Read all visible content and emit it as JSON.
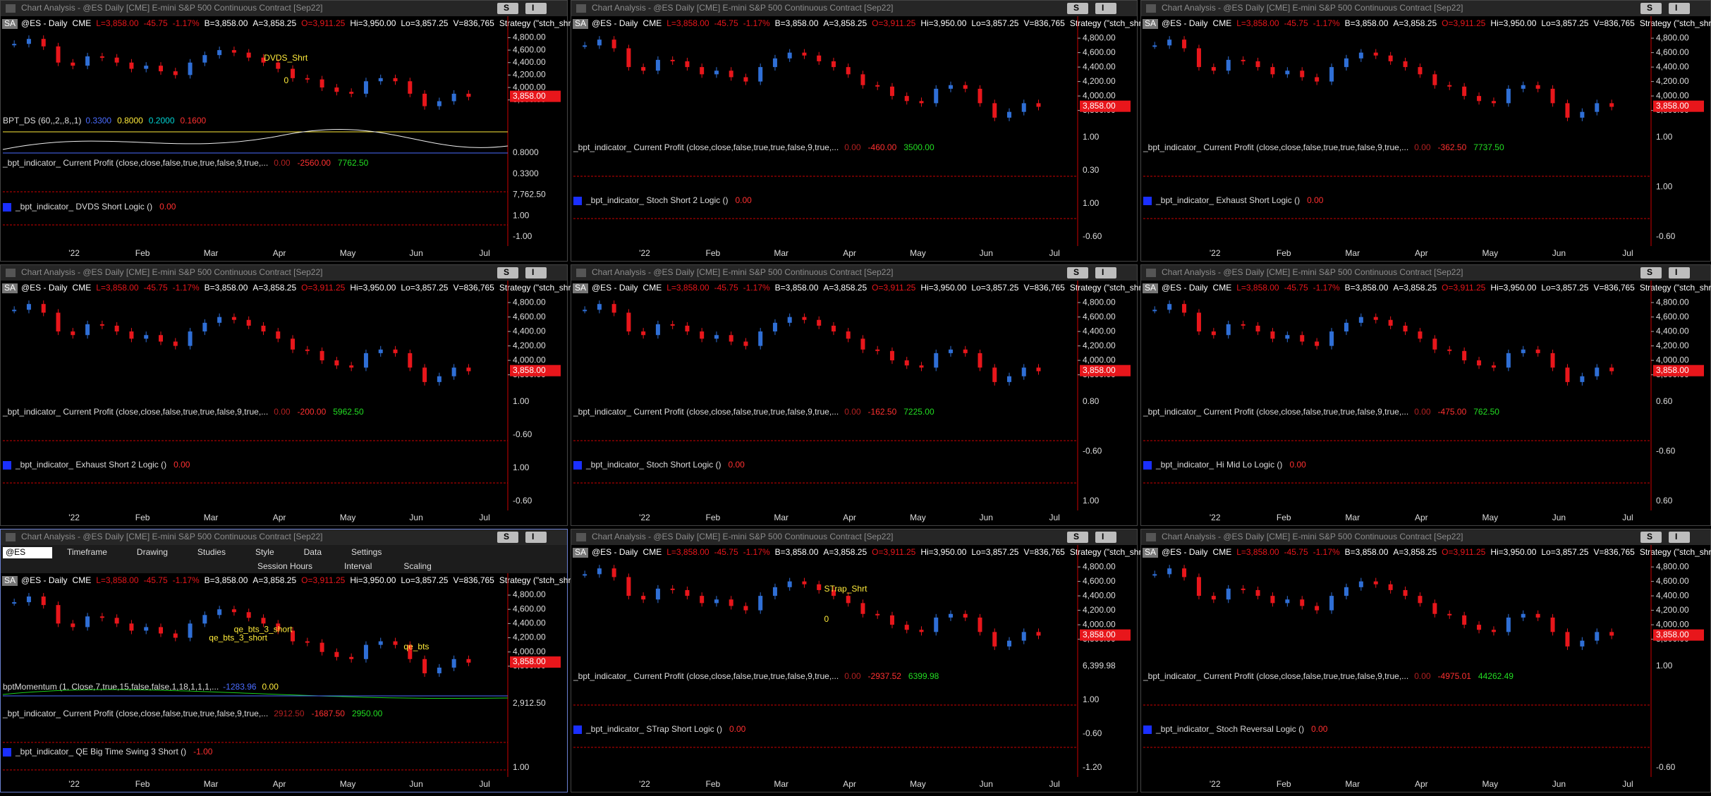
{
  "window_title": "Chart Analysis - @ES Daily [CME] E-mini S&P 500 Continuous Contract [Sep22]",
  "buttons": [
    "S",
    "I"
  ],
  "badge": "SA",
  "quote": [
    {
      "text": "@ES - Daily",
      "color": "#ffffff"
    },
    {
      "text": "CME",
      "color": "#ffffff"
    },
    {
      "text": "L=3,858.00",
      "color": "#e8161b"
    },
    {
      "text": "-45.75",
      "color": "#e8161b"
    },
    {
      "text": "-1.17%",
      "color": "#e8161b"
    },
    {
      "text": "B=3,858.00",
      "color": "#ffffff"
    },
    {
      "text": "A=3,858.25",
      "color": "#ffffff"
    },
    {
      "text": "O=3,911.25",
      "color": "#e8161b"
    },
    {
      "text": "Hi=3,950.00",
      "color": "#ffffff"
    },
    {
      "text": "Lo=3,857.25",
      "color": "#ffffff"
    },
    {
      "text": "V=836,765",
      "color": "#ffffff"
    },
    {
      "text": "Strategy (\"stch_shrt_...",
      "color": "#ffffff"
    }
  ],
  "months": [
    "'22",
    "Feb",
    "Mar",
    "Apr",
    "May",
    "Jun",
    "Jul"
  ],
  "price": {
    "closes": [
      4700,
      4780,
      4660,
      4400,
      4350,
      4500,
      4480,
      4400,
      4300,
      4350,
      4260,
      4200,
      4400,
      4520,
      4600,
      4560,
      4480,
      4400,
      4300,
      4150,
      4130,
      4000,
      3930,
      3900,
      4100,
      4150,
      4100,
      3900,
      3700,
      3780,
      3900,
      3850
    ],
    "ylim": [
      3650,
      4850
    ],
    "yticks": [
      {
        "value": 4800,
        "label": "4,800.00"
      },
      {
        "value": 4600,
        "label": "4,600.00"
      },
      {
        "value": 4400,
        "label": "4,400.00"
      },
      {
        "value": 4200,
        "label": "4,200.00"
      },
      {
        "value": 4000,
        "label": "4,000.00"
      },
      {
        "value": 3800,
        "label": "3,800.00"
      }
    ],
    "last": {
      "value": 3858,
      "label": "3,858.00"
    },
    "up_color": "#2f6fd6",
    "down_color": "#e8161b"
  },
  "profit_label": "_bpt_indicator_ Current Profit (close,close,false,true,true,false,9,true,...",
  "toolbar": {
    "symbol": "@ES",
    "row1": [
      "Timeframe",
      "Drawing",
      "Studies",
      "Style",
      "Data",
      "Settings"
    ],
    "row2": [
      "Session Hours",
      "Interval",
      "Scaling"
    ]
  },
  "windows": [
    {
      "profit_values": [
        "0.00",
        "-2560.00",
        "7762.50"
      ],
      "logic_label": "_bpt_indicator_ DVDS Short Logic ()",
      "logic_value": "0.00",
      "sub_ticks": [
        "0.8000",
        "0.3300",
        "7,762.50",
        "1.00",
        "-1.00"
      ],
      "annotations": [
        "DVDS_Shrt",
        "0"
      ],
      "extra": {
        "label": "BPT_DS (60,,2,,8,,1)",
        "values": [
          "0.3300",
          "0.8000",
          "0.2000",
          "0.1600"
        ]
      }
    },
    {
      "profit_values": [
        "0.00",
        "-460.00",
        "3500.00"
      ],
      "logic_label": "_bpt_indicator_ Stoch Short 2 Logic ()",
      "logic_value": "0.00",
      "sub_ticks": [
        "1.00",
        "0.30",
        "1.00",
        "-0.60"
      ]
    },
    {
      "profit_values": [
        "0.00",
        "-362.50",
        "7737.50"
      ],
      "logic_label": "_bpt_indicator_ Exhaust Short Logic ()",
      "logic_value": "0.00",
      "sub_ticks": [
        "1.00",
        "1.00",
        "-0.60"
      ]
    },
    {
      "profit_values": [
        "0.00",
        "-200.00",
        "5962.50"
      ],
      "logic_label": "_bpt_indicator_ Exhaust Short 2 Logic ()",
      "logic_value": "0.00",
      "sub_ticks": [
        "1.00",
        "-0.60",
        "1.00",
        "-0.60"
      ]
    },
    {
      "profit_values": [
        "0.00",
        "-162.50",
        "7225.00"
      ],
      "logic_label": "_bpt_indicator_ Stoch Short Logic ()",
      "logic_value": "0.00",
      "sub_ticks": [
        "0.80",
        "-0.60",
        "1.00"
      ]
    },
    {
      "profit_values": [
        "0.00",
        "-475.00",
        "762.50"
      ],
      "logic_label": "_bpt_indicator_ Hi Mid Lo Logic ()",
      "logic_value": "0.00",
      "sub_ticks": [
        "0.60",
        "-0.60",
        "0.60"
      ]
    },
    {
      "profit_values": [
        "2912.50",
        "-1687.50",
        "2950.00"
      ],
      "logic_label": "_bpt_indicator_ QE Big Time Swing 3 Short ()",
      "logic_value": "-1.00",
      "sub_ticks": [
        "2,912.50",
        "1.00"
      ],
      "annotations": [
        "qe_bts_3_short",
        "qe_bts_3_short",
        "qe_bts"
      ],
      "extra": {
        "label": "bptMomentum (1, Close,7,true,15,false,false,1,18,1,1,1,...",
        "values": [
          "-1283.96",
          "0.00"
        ]
      }
    },
    {
      "profit_values": [
        "0.00",
        "-2937.52",
        "6399.98"
      ],
      "logic_label": "_bpt_indicator_ STrap Short Logic ()",
      "logic_value": "0.00",
      "sub_ticks": [
        "6,399.98",
        "1.00",
        "-0.60",
        "-1.20"
      ],
      "annotations": [
        "STrap_Shrt",
        "0"
      ]
    },
    {
      "profit_values": [
        "0.00",
        "-4975.01",
        "44262.49"
      ],
      "logic_label": "_bpt_indicator_ Stoch Reversal Logic ()",
      "logic_value": "0.00",
      "sub_ticks": [
        "1.00",
        "-0.60"
      ]
    }
  ]
}
